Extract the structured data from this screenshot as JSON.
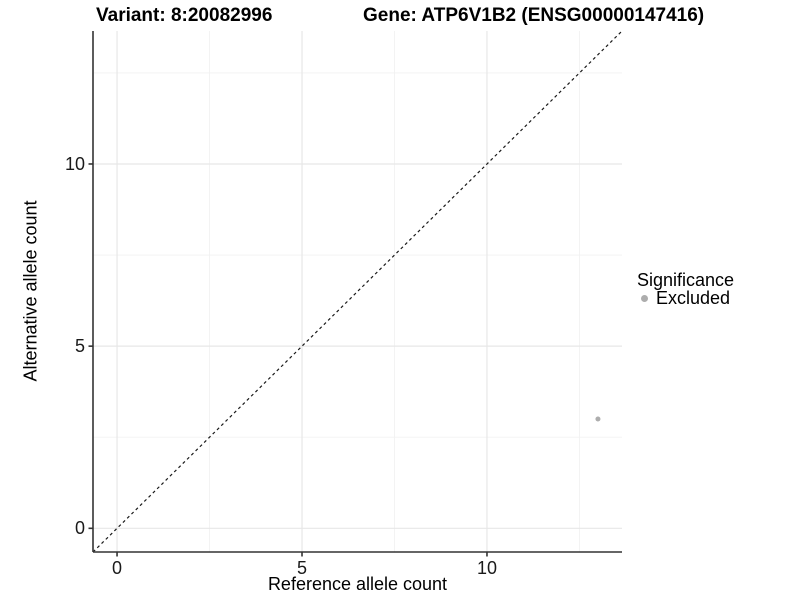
{
  "header": {
    "variant_title": "Variant: 8:20082996",
    "gene_title": "Gene: ATP6V1B2 (ENSG00000147416)"
  },
  "chart_data": {
    "type": "scatter",
    "xlabel": "Reference allele count",
    "ylabel": "Alternative allele count",
    "xlim": [
      -0.65,
      13.65
    ],
    "ylim": [
      -0.65,
      13.65
    ],
    "x_ticks": {
      "values": [
        0,
        5,
        10
      ],
      "labels": [
        "0",
        "5",
        "10"
      ],
      "minor": [
        2.5,
        7.5,
        12.5
      ]
    },
    "y_ticks": {
      "values": [
        0,
        5,
        10
      ],
      "labels": [
        "0",
        "5",
        "10"
      ],
      "minor": [
        2.5,
        7.5,
        12.5
      ]
    },
    "grid": true,
    "identity_line": {
      "style": "dashed",
      "equation": "y = x"
    },
    "series": [
      {
        "name": "Excluded",
        "color": "#adadad",
        "point_radius": 2.5,
        "points": [
          {
            "x": 13,
            "y": 3
          }
        ]
      }
    ],
    "legend": {
      "title": "Significance",
      "position": "right",
      "entries": [
        {
          "label": "Excluded",
          "color": "#adadad"
        }
      ]
    },
    "colors": {
      "background": "#ffffff",
      "grid_major": "#e7e7e7",
      "grid_minor": "#f2f2f2",
      "axis_line": "#333333",
      "identity_line": "#1a1a1a",
      "tick_text": "#1a1a1a"
    }
  }
}
